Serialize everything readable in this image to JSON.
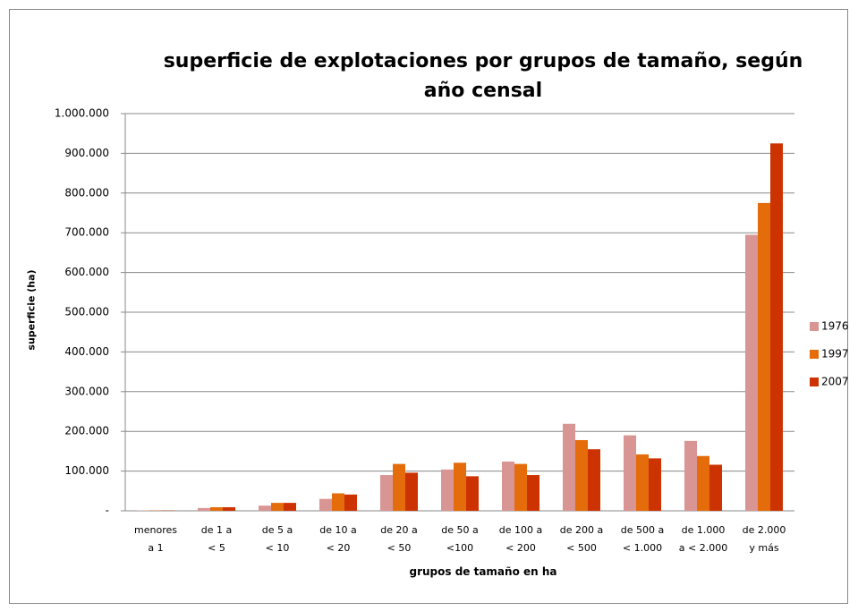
{
  "chart_data": {
    "type": "bar",
    "title": "superficie de explotaciones por grupos de tamaño, según\naño censal",
    "x_label": "grupos de tamaño en ha",
    "y_label": "superficie (ha)",
    "categories": [
      "menores\na 1",
      "de 1 a\n< 5",
      "de 5 a\n< 10",
      "de 10 a\n< 20",
      "de 20 a\n< 50",
      "de 50 a\n<100",
      "de 100 a\n< 200",
      "de 200 a\n< 500",
      "de 500 a\n< 1.000",
      "de 1.000\na < 2.000",
      "de 2.000\ny más"
    ],
    "series": [
      {
        "name": "1976",
        "color": "#d99594",
        "values": [
          1000,
          7000,
          13000,
          30000,
          90000,
          104000,
          124000,
          219000,
          190000,
          176000,
          695000
        ]
      },
      {
        "name": "1997",
        "color": "#e46c0a",
        "values": [
          800,
          9000,
          20000,
          44000,
          118000,
          121000,
          118000,
          178000,
          142000,
          138000,
          775000
        ]
      },
      {
        "name": "2007",
        "color": "#cc3300",
        "values": [
          700,
          9000,
          20000,
          41000,
          96000,
          87000,
          90000,
          155000,
          132000,
          116000,
          925000
        ]
      }
    ],
    "ylim": [
      0,
      1000000
    ],
    "yticks": [
      {
        "value": 0,
        "label": "-"
      },
      {
        "value": 100000,
        "label": "100.000"
      },
      {
        "value": 200000,
        "label": "200.000"
      },
      {
        "value": 300000,
        "label": "300.000"
      },
      {
        "value": 400000,
        "label": "400.000"
      },
      {
        "value": 500000,
        "label": "500.000"
      },
      {
        "value": 600000,
        "label": "600.000"
      },
      {
        "value": 700000,
        "label": "700.000"
      },
      {
        "value": 800000,
        "label": "800.000"
      },
      {
        "value": 900000,
        "label": "900.000"
      },
      {
        "value": 1000000,
        "label": "1.000.000"
      }
    ],
    "grid": true,
    "legend": "right"
  }
}
